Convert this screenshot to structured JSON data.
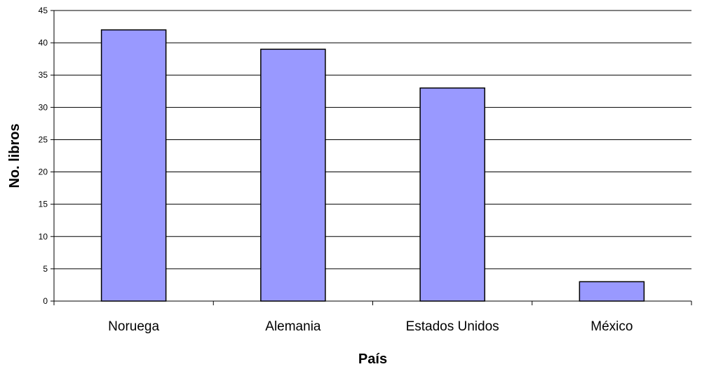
{
  "chart_data": {
    "type": "bar",
    "title": "",
    "xlabel": "País",
    "ylabel": "No. libros",
    "categories": [
      "Noruega",
      "Alemania",
      "Estados Unidos",
      "México"
    ],
    "values": [
      42,
      39,
      33,
      3
    ],
    "ylim": [
      0,
      45
    ],
    "yticks": [
      "0",
      "5",
      "10",
      "15",
      "20",
      "25",
      "30",
      "35",
      "40",
      "45"
    ],
    "grid": true,
    "legend": "none",
    "colors": {
      "bar_fill": "#9999ff",
      "bar_stroke": "#000000",
      "grid": "#000000",
      "axis": "#000000"
    }
  }
}
